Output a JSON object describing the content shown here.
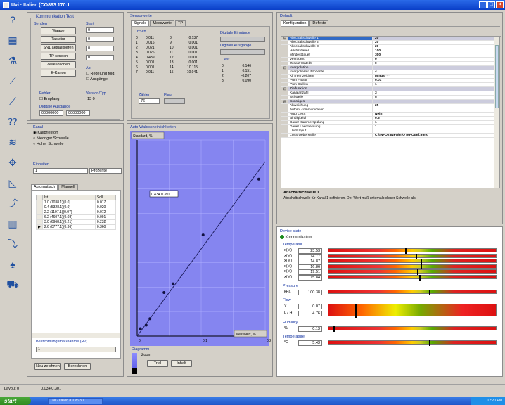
{
  "window": {
    "title": "Uvi · Italien (CO893 170.1"
  },
  "taskbar": {
    "start": "start",
    "item": "Uvi · Italien (CO893 1...",
    "time": "12:20 PM"
  },
  "status": {
    "left": "Layout 0",
    "coords": "0.034   0.301"
  },
  "left_icons": [
    "help-icon",
    "layout-icon",
    "sample-icon",
    "chart-icon",
    "chart2-icon",
    "question-icon",
    "graph-icon",
    "move-icon",
    "triangle-icon",
    "step-icon",
    "grid-icon",
    "step2-icon",
    "drop-icon",
    "car-icon"
  ],
  "control": {
    "group_title": "Kommunikation Test",
    "senden_label": "Senden",
    "buttons": [
      "Waage",
      "Tastatur",
      "SN1 aktualisieren",
      "TP senden",
      "Zeile löschen",
      "E-Kanon"
    ],
    "start_label": "Start",
    "fields": [
      "0",
      "0",
      "0",
      "0"
    ],
    "fields2": [
      "0"
    ],
    "ab_label": "Ab",
    "chk1": "Regelung folg.",
    "chk2": "Ausgänge",
    "fehler_label": "Fehler",
    "empfang_label": "Empfang",
    "version_label": "Version/Typ",
    "version_val": "13     0",
    "digital_label": "Digitale Ausgänge",
    "digital_a": "00000000",
    "digital_b": "00000000"
  },
  "sensor": {
    "title": "Sensorwerte",
    "tabs": [
      "Signale",
      "Messwerte",
      "TP"
    ],
    "header": "nSch",
    "rows": [
      [
        "0",
        "0.011",
        "8",
        "0.137"
      ],
      [
        "1",
        "0.016",
        "9",
        "0.001"
      ],
      [
        "2",
        "0.021",
        "10",
        "0.001"
      ],
      [
        "3",
        "0.026",
        "11",
        "0.001"
      ],
      [
        "4",
        "0.439",
        "12",
        "0.001"
      ],
      [
        "5",
        "0.001",
        "13",
        "0.001"
      ],
      [
        "6",
        "0.001",
        "14",
        "10.115"
      ],
      [
        "7",
        "0.011",
        "15",
        "10.041"
      ]
    ],
    "digin_label": "Digitale Eingänge",
    "digout_label": "Digitale Ausgänge",
    "extra_label": "Dest",
    "extra_rows": [
      [
        "0",
        "0.146"
      ],
      [
        "1",
        "0.151"
      ],
      [
        "2",
        "-0.207"
      ],
      [
        "3",
        "0.090"
      ]
    ],
    "zähler_label": "Zähler",
    "zähler_val": "76",
    "flag_label": "Flag"
  },
  "default": {
    "title": "Default",
    "tabs": [
      "Konfiguration",
      "Defekte"
    ],
    "rows": [
      {
        "k": "Abschaltschwelle 1",
        "v": "20",
        "h": true,
        "sel": true
      },
      {
        "k": "Abschaltschwelle 2",
        "v": "20"
      },
      {
        "k": "Abschaltschwelle 3",
        "v": "20"
      },
      {
        "k": "Höchstdauer",
        "v": "100"
      },
      {
        "k": "Mindestdauer",
        "v": "300"
      },
      {
        "k": "Verzögert",
        "v": "0"
      },
      {
        "k": "Zusatz Watedt",
        "v": "0"
      },
      {
        "k": "Interpolation",
        "v": "",
        "h": true
      },
      {
        "k": "Interpolierten Prozente",
        "v": "4"
      },
      {
        "k": "Kl Trennzeichen",
        "v": "Minus \"-\""
      },
      {
        "k": "Pum Faktor",
        "v": "0.01"
      },
      {
        "k": "Pum Stellen",
        "v": "1"
      },
      {
        "k": "Zielfunktion",
        "v": "",
        "h": true
      },
      {
        "k": "Kanalanzahl",
        "v": "3"
      },
      {
        "k": "Schwelle",
        "v": "5"
      },
      {
        "k": "Sonstiges",
        "v": "",
        "h": true
      },
      {
        "k": "Abweichung",
        "v": "25"
      },
      {
        "k": "Autom. communication",
        "v": ""
      },
      {
        "k": "Auto LIMS",
        "v": "Nein"
      },
      {
        "k": "Bindigkeit/h",
        "v": "0.5"
      },
      {
        "k": "Dauer Kammerspülung",
        "v": "1"
      },
      {
        "k": "Dauer Leermessung",
        "v": "1"
      },
      {
        "k": "LIMS Input",
        "v": ""
      },
      {
        "k": "LIMS Ueberstelle",
        "v": "C:\\INFO2 INFOinfO INFOtmf.mmo"
      }
    ],
    "desc_title": "Abschaltschwelle 1",
    "desc_text": "Abschaltschwelle für Kanal 1 definieren. Der Wert muß unterhalb dieser Schwelle als"
  },
  "kanal": {
    "title": "Kanal",
    "radios": [
      "Kalibriestoff",
      "Niedriger Schwelle",
      "Hoher Schwelle"
    ],
    "einheit_label": "Einheiten",
    "select1": "1",
    "select2": "Prozente",
    "tabs": [
      "Automatisch",
      "Manuell"
    ],
    "cols": [
      "",
      "Ist",
      "Soll"
    ],
    "rows": [
      [
        "",
        "7.0 (7038.1)(0.0)",
        "0.017"
      ],
      [
        "",
        "0.4 (5328.1)(0.0)",
        "0.020"
      ],
      [
        "",
        "2.2 (1197.1)(0.07)",
        "0.072"
      ],
      [
        "",
        "6.2 (4607.1)(0.08)",
        "0.091"
      ],
      [
        "",
        "3.0 (6968.1)(0.21)",
        "0.232"
      ],
      [
        "▶",
        "2.6 (0777.1)(0.36)",
        "0.360"
      ]
    ],
    "bottom_label": "Bestimmungsmaßnahme (R2)",
    "bottom_val": "1",
    "btn_new": "Neu zeichnen",
    "btn_calc": "Berechnen"
  },
  "chart_data": {
    "type": "line",
    "title": "Auto-Wahrscheinlichkeiten",
    "ylabel": "Standard, %",
    "xlabel": "Messwert, %",
    "tooltip": "0.434   0.391",
    "x": [
      0.005,
      0.014,
      0.02,
      0.042,
      0.056,
      0.103,
      0.19
    ],
    "y": [
      0.017,
      0.025,
      0.04,
      0.1,
      0.12,
      0.232,
      0.36
    ],
    "xticks": [
      "0",
      "0.1",
      "0.2"
    ],
    "xlim": [
      0,
      0.2
    ],
    "ylim": [
      0,
      0.45
    ],
    "line_x": [
      0,
      0.2
    ],
    "line_y": [
      0,
      0.4
    ],
    "legend_title": "Diagramm",
    "legend_item": "Zoom",
    "btn_trial": "Trial",
    "btn_default": "Inhalt"
  },
  "device": {
    "title": "Device state",
    "status": "Kommunikation",
    "temp_title": "Temperatur",
    "temps": [
      [
        "x(M)",
        "23.53",
        0.46
      ],
      [
        "x(M)",
        "14.77",
        0.52
      ],
      [
        "x(M)",
        "14.87",
        0.55
      ],
      [
        "x(M)",
        "16.86",
        0.55
      ],
      [
        "x(M)",
        "19.51",
        0.53
      ],
      [
        "x(M)",
        "15.84",
        0.54
      ]
    ],
    "pressure_title": "Pressure",
    "pressure": [
      "kPa",
      "100.38",
      0.6
    ],
    "flow_title": "Flow",
    "flow": [
      [
        "V",
        "0.07"
      ],
      [
        "L / H",
        "4.76"
      ]
    ],
    "flow_marker": 0.16,
    "humid_title": "Humidity",
    "humid": [
      "%",
      "0.13",
      0.03
    ],
    "temp2_title": "Temperature",
    "temp2": [
      "ºC",
      "5.43",
      0.6
    ]
  }
}
